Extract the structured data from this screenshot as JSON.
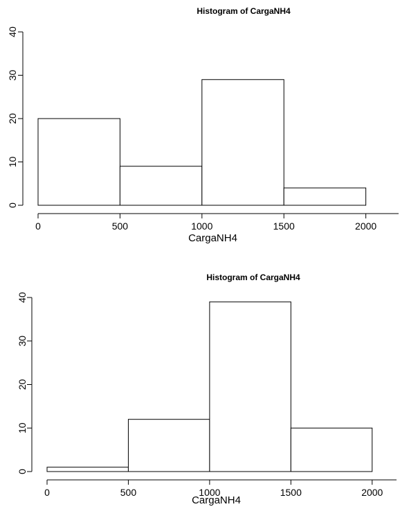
{
  "chart_data": [
    {
      "type": "bar",
      "title": "Histogram of CargaNH4",
      "xlabel": "CargaNH4",
      "ylabel": "",
      "bins": [
        {
          "start": 0,
          "end": 500,
          "count": 20
        },
        {
          "start": 500,
          "end": 1000,
          "count": 9
        },
        {
          "start": 1000,
          "end": 1500,
          "count": 29
        },
        {
          "start": 1500,
          "end": 2000,
          "count": 4
        }
      ],
      "xlim": [
        0,
        2200
      ],
      "ylim": [
        0,
        40
      ],
      "x_ticks": [
        0,
        500,
        1000,
        1500,
        2000
      ],
      "y_ticks": [
        0,
        10,
        20,
        30,
        40
      ],
      "grid": false
    },
    {
      "type": "bar",
      "title": "Histogram of CargaNH4",
      "xlabel": "CargaNH4",
      "ylabel": "",
      "bins": [
        {
          "start": 0,
          "end": 500,
          "count": 1
        },
        {
          "start": 500,
          "end": 1000,
          "count": 12
        },
        {
          "start": 1000,
          "end": 1500,
          "count": 39
        },
        {
          "start": 1500,
          "end": 2000,
          "count": 10
        }
      ],
      "xlim": [
        0,
        2150
      ],
      "ylim": [
        0,
        40
      ],
      "x_ticks": [
        0,
        500,
        1000,
        1500,
        2000
      ],
      "y_ticks": [
        0,
        10,
        20,
        30,
        40
      ],
      "grid": false
    }
  ]
}
